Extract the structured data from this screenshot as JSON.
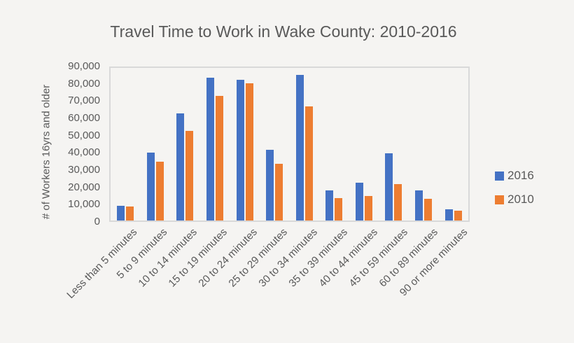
{
  "title": "Travel Time to Work in Wake County: 2010-2016",
  "y_axis": {
    "title": "# of Workers 16yrs and older",
    "tick_labels": [
      "0",
      "10,000",
      "20,000",
      "30,000",
      "40,000",
      "50,000",
      "60,000",
      "70,000",
      "80,000",
      "90,000"
    ]
  },
  "legend": {
    "items": [
      {
        "label": "2016",
        "color": "#4472C4"
      },
      {
        "label": "2010",
        "color": "#ED7D31"
      }
    ]
  },
  "colors": {
    "series_2016": "#4472C4",
    "series_2010": "#ED7D31",
    "text": "#595959",
    "plot_border": "#d9d9d9",
    "background": "#f5f4f2"
  },
  "chart_data": {
    "type": "bar",
    "title": "Travel Time to Work in Wake County: 2010-2016",
    "categories": [
      "Less than 5 minutes",
      "5 to 9 minutes",
      "10 to 14 minutes",
      "15 to 19 minutes",
      "20 to 24 minutes",
      "25 to 29 minutes",
      "30 to 34 minutes",
      "35 to 39 minutes",
      "40 to 44 minutes",
      "45 to 59 minutes",
      "60 to 89 minutes",
      "90 or more minutes"
    ],
    "series": [
      {
        "name": "2016",
        "color": "#4472C4",
        "values": [
          8500,
          39500,
          62000,
          82500,
          81500,
          41000,
          84500,
          17500,
          22000,
          39000,
          17500,
          6500
        ]
      },
      {
        "name": "2010",
        "color": "#ED7D31",
        "values": [
          8000,
          34000,
          52000,
          72000,
          79500,
          33000,
          66000,
          13000,
          14000,
          21000,
          12500,
          5500
        ]
      }
    ],
    "xlabel": "",
    "ylabel": "# of Workers 16yrs and older",
    "ylim": [
      0,
      90000
    ],
    "ytick_interval": 10000,
    "grid": false,
    "legend_position": "right"
  }
}
